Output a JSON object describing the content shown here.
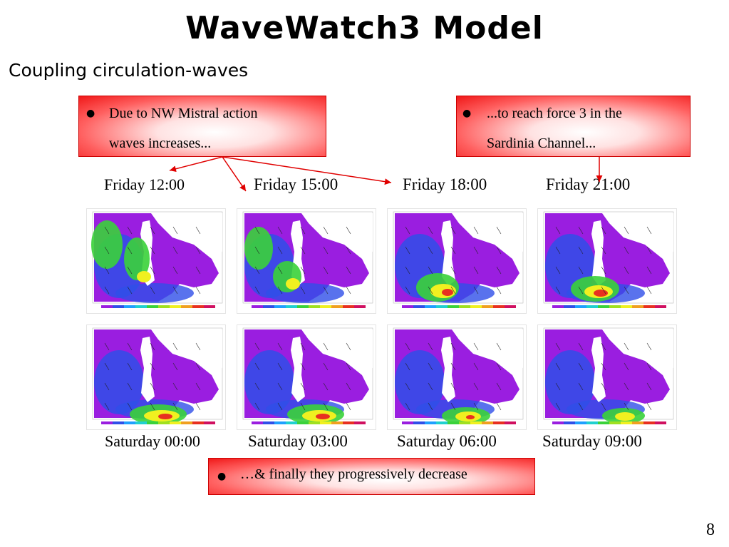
{
  "slide": {
    "title": "WaveWatch3  Model",
    "subtitle": "Coupling circulation-waves",
    "page_number": "8"
  },
  "callouts": {
    "left": {
      "bullet": "●",
      "line1": "Due to NW Mistral action",
      "line2": "waves increases..."
    },
    "right": {
      "bullet": "●",
      "line1": "...to reach force 3 in the",
      "line2": "Sardinia Channel..."
    },
    "bottom": {
      "bullet": "●",
      "text": "…& finally they progressively decrease"
    }
  },
  "captions": {
    "top": [
      "Friday 12:00",
      "Friday 15:00",
      "Friday 18:00",
      "Friday 21:00"
    ],
    "bottom": [
      "Saturday 00:00",
      "Saturday 03:00",
      "Saturday 06:00",
      "Saturday 09:00"
    ]
  },
  "colors": {
    "callout_red": "#f01818",
    "arrow_red": "#e00000",
    "map_purple": "#9a1ee0",
    "map_blue": "#2f4fe8",
    "map_green": "#3ad23a",
    "map_yellow": "#f0f020",
    "map_red": "#e83020"
  },
  "map_icons": [
    "wave-height-map"
  ]
}
